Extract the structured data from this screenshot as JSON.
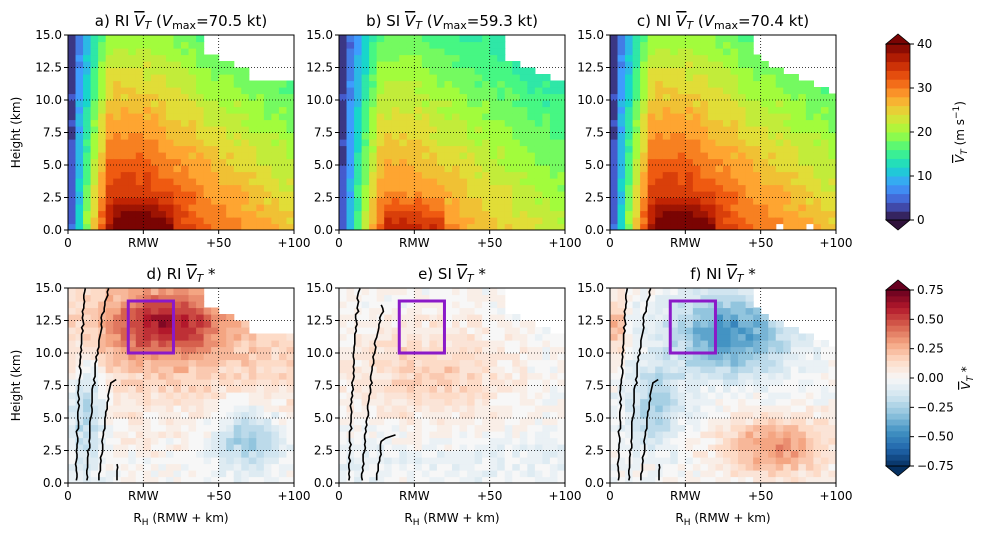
{
  "chart_data": {
    "type": "heatmap",
    "x_axis": {
      "range": [
        -50,
        100
      ],
      "ticks": [
        0,
        50,
        100,
        150
      ],
      "tick_labels": [
        "0",
        "RMW",
        "+50",
        "+100"
      ],
      "xlabel_main": "R",
      "xlabel_sub": "H",
      "xlabel_rest": " (RMW + km)"
    },
    "y_axis": {
      "range": [
        0,
        15
      ],
      "ticks": [
        0,
        2.5,
        5,
        7.5,
        10,
        12.5,
        15
      ],
      "tick_labels": [
        "0.0",
        "2.5",
        "5.0",
        "7.5",
        "10.0",
        "12.5",
        "15.0"
      ],
      "ylabel": "Height (km)"
    },
    "panels": [
      {
        "id": "a",
        "row": 0,
        "col": 0,
        "group": "RI",
        "kind": "full",
        "title_prefix": "a) RI ",
        "title_var": "V",
        "title_sub": "T",
        "title_mid": " (",
        "title_vmax": "V",
        "title_vmax_sub": "max",
        "title_tail": "=70.5 kt)",
        "vmax_kt": 70.5,
        "box": null
      },
      {
        "id": "b",
        "row": 0,
        "col": 1,
        "group": "SI",
        "kind": "full",
        "title_prefix": "b) SI ",
        "title_var": "V",
        "title_sub": "T",
        "title_mid": " (",
        "title_vmax": "V",
        "title_vmax_sub": "max",
        "title_tail": "=59.3 kt)",
        "vmax_kt": 59.3,
        "box": null
      },
      {
        "id": "c",
        "row": 0,
        "col": 2,
        "group": "NI",
        "kind": "full",
        "title_prefix": "c) NI ",
        "title_var": "V",
        "title_sub": "T",
        "title_mid": " (",
        "title_vmax": "V",
        "title_vmax_sub": "max",
        "title_tail": "=70.4 kt)",
        "vmax_kt": 70.4,
        "box": null
      },
      {
        "id": "d",
        "row": 1,
        "col": 0,
        "group": "RI",
        "kind": "anomaly",
        "title_prefix": "d) RI ",
        "title_var": "V",
        "title_sub": "T",
        "title_star": "*",
        "box": {
          "x0": -10,
          "x1": 20,
          "y0": 10,
          "y1": 14
        }
      },
      {
        "id": "e",
        "row": 1,
        "col": 1,
        "group": "SI",
        "kind": "anomaly",
        "title_prefix": "e) SI ",
        "title_var": "V",
        "title_sub": "T",
        "title_star": "*",
        "box": {
          "x0": -10,
          "x1": 20,
          "y0": 10,
          "y1": 14
        }
      },
      {
        "id": "f",
        "row": 1,
        "col": 2,
        "group": "NI",
        "kind": "anomaly",
        "title_prefix": "f) NI ",
        "title_var": "V",
        "title_sub": "T",
        "title_star": "*",
        "box": {
          "x0": -10,
          "x1": 20,
          "y0": 10,
          "y1": 14
        }
      }
    ],
    "colorbar_top": {
      "range": [
        0,
        40
      ],
      "ticks": [
        0,
        10,
        20,
        30,
        40
      ],
      "tick_labels": [
        "0",
        "10",
        "20",
        "30",
        "40"
      ],
      "label_var": "V",
      "label_sub": "T",
      "label_units": " (m s",
      "label_exp": "−1",
      "label_close": ")",
      "colormap": "turbo"
    },
    "colorbar_bottom": {
      "range": [
        -0.75,
        0.75
      ],
      "ticks": [
        -0.75,
        -0.5,
        -0.25,
        0,
        0.25,
        0.5,
        0.75
      ],
      "tick_labels": [
        "−0.75",
        "−0.50",
        "−0.25",
        "0.00",
        "0.25",
        "0.50",
        "0.75"
      ],
      "label_var": "V",
      "label_sub": "T",
      "label_star": "*",
      "colormap": "RdBu_r"
    },
    "box_color": "#8B19C8",
    "contour_color": "#000000",
    "grid": "dotted"
  }
}
